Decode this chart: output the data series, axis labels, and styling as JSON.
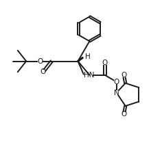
{
  "bg_color": "#ffffff",
  "line_color": "#1a1a1a",
  "line_width": 1.4,
  "figsize": [
    2.36,
    2.15
  ],
  "dpi": 100,
  "xlim": [
    0,
    10
  ],
  "ylim": [
    0,
    9.5
  ]
}
